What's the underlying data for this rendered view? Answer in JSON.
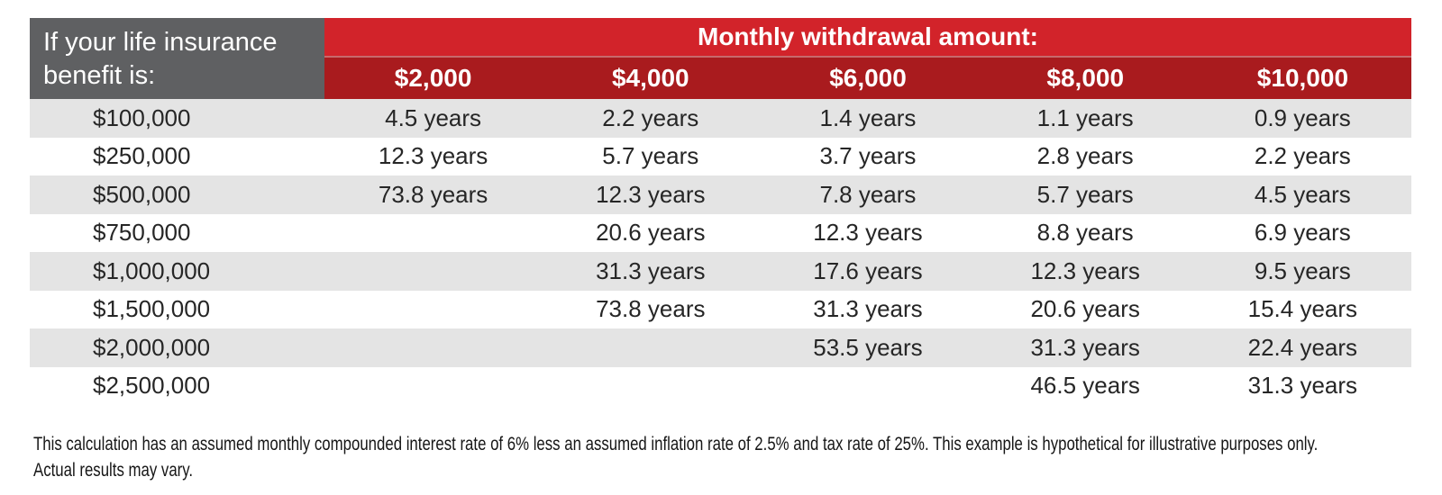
{
  "table": {
    "corner_header": {
      "line1": "If your life insurance",
      "line2": "benefit is:"
    },
    "group_header": "Monthly withdrawal amount:",
    "columns": [
      "$2,000",
      "$4,000",
      "$6,000",
      "$8,000",
      "$10,000"
    ],
    "rows": [
      {
        "benefit": "$100,000",
        "values": [
          "4.5 years",
          "2.2 years",
          "1.4 years",
          "1.1 years",
          "0.9 years"
        ]
      },
      {
        "benefit": "$250,000",
        "values": [
          "12.3 years",
          "5.7 years",
          "3.7 years",
          "2.8 years",
          "2.2 years"
        ]
      },
      {
        "benefit": "$500,000",
        "values": [
          "73.8 years",
          "12.3 years",
          "7.8 years",
          "5.7 years",
          "4.5 years"
        ]
      },
      {
        "benefit": "$750,000",
        "values": [
          "",
          "20.6 years",
          "12.3 years",
          "8.8 years",
          "6.9 years"
        ]
      },
      {
        "benefit": "$1,000,000",
        "values": [
          "",
          "31.3 years",
          "17.6 years",
          "12.3 years",
          "9.5 years"
        ]
      },
      {
        "benefit": "$1,500,000",
        "values": [
          "",
          "73.8 years",
          "31.3 years",
          "20.6 years",
          "15.4 years"
        ]
      },
      {
        "benefit": "$2,000,000",
        "values": [
          "",
          "",
          "53.5 years",
          "31.3 years",
          "22.4 years"
        ]
      },
      {
        "benefit": "$2,500,000",
        "values": [
          "",
          "",
          "",
          "46.5 years",
          "31.3 years"
        ]
      }
    ]
  },
  "footnote": {
    "line1": "This calculation has an assumed monthly compounded interest rate of 6% less an assumed inflation rate of 2.5% and tax rate of 25%. This example is hypothetical for illustrative purposes only.",
    "line2": "Actual results may vary."
  },
  "colors": {
    "bright_red": "#D2232A",
    "dark_red": "#A91B1E",
    "header_gray": "#5F6062",
    "row_gray": "#E4E4E4"
  },
  "chart_data": {
    "type": "table",
    "title": "Monthly withdrawal amount:",
    "row_header": "If your life insurance benefit is:",
    "columns": [
      "$2,000",
      "$4,000",
      "$6,000",
      "$8,000",
      "$10,000"
    ],
    "row_labels": [
      "$100,000",
      "$250,000",
      "$500,000",
      "$750,000",
      "$1,000,000",
      "$1,500,000",
      "$2,000,000",
      "$2,500,000"
    ],
    "cell_unit": "years",
    "cells_years": [
      [
        4.5,
        2.2,
        1.4,
        1.1,
        0.9
      ],
      [
        12.3,
        5.7,
        3.7,
        2.8,
        2.2
      ],
      [
        73.8,
        12.3,
        7.8,
        5.7,
        4.5
      ],
      [
        null,
        20.6,
        12.3,
        8.8,
        6.9
      ],
      [
        null,
        31.3,
        17.6,
        12.3,
        9.5
      ],
      [
        null,
        73.8,
        31.3,
        20.6,
        15.4
      ],
      [
        null,
        null,
        53.5,
        31.3,
        22.4
      ],
      [
        null,
        null,
        null,
        46.5,
        31.3
      ]
    ]
  }
}
